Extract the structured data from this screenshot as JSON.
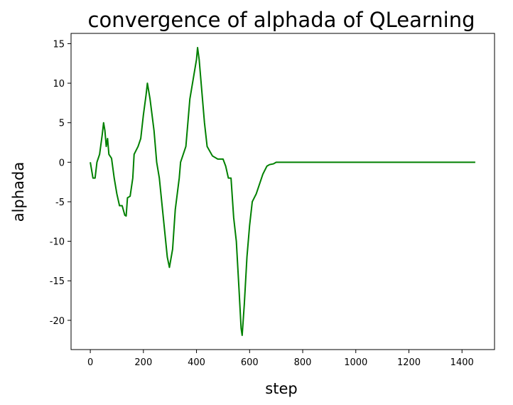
{
  "chart_data": {
    "type": "line",
    "title": "convergence of alphada of QLearning",
    "x_label": "step",
    "y_label": "alphada",
    "x": [
      0,
      10,
      18,
      25,
      35,
      45,
      50,
      55,
      60,
      65,
      70,
      80,
      90,
      100,
      110,
      120,
      130,
      135,
      140,
      150,
      160,
      165,
      180,
      190,
      200,
      210,
      215,
      220,
      225,
      240,
      250,
      260,
      275,
      290,
      298,
      310,
      320,
      335,
      340,
      360,
      375,
      390,
      400,
      404,
      410,
      420,
      430,
      440,
      460,
      480,
      500,
      510,
      520,
      530,
      540,
      550,
      560,
      568,
      572,
      580,
      590,
      600,
      610,
      625,
      635,
      650,
      665,
      675,
      690,
      700,
      720,
      1450
    ],
    "series": [
      {
        "name": "alphada",
        "color": "#008000",
        "values": [
          0,
          -2,
          -2,
          0,
          1,
          3.5,
          5,
          4,
          2,
          3,
          1,
          0.5,
          -2,
          -4,
          -5.5,
          -5.5,
          -6.7,
          -6.8,
          -4.5,
          -4.3,
          -2,
          1,
          2,
          3,
          6,
          8.5,
          10,
          9,
          8,
          4,
          0,
          -2,
          -7,
          -12,
          -13.3,
          -11,
          -6,
          -2,
          0,
          2,
          8,
          11,
          13,
          14.5,
          13,
          9,
          5,
          2,
          0.8,
          0.4,
          0.4,
          -0.5,
          -2,
          -2,
          -7,
          -10,
          -16,
          -21,
          -21.9,
          -18,
          -12,
          -8,
          -5,
          -4,
          -3,
          -1.5,
          -0.5,
          -0.3,
          -0.2,
          0,
          0,
          0
        ]
      }
    ],
    "xlim": [
      -72.5,
      1522.5
    ],
    "xticks": [
      0,
      200,
      400,
      600,
      800,
      1000,
      1200,
      1400
    ],
    "ylim": [
      -23.7,
      16.3
    ],
    "yticks": [
      -20,
      -15,
      -10,
      -5,
      0,
      5,
      10,
      15
    ],
    "grid": false
  }
}
